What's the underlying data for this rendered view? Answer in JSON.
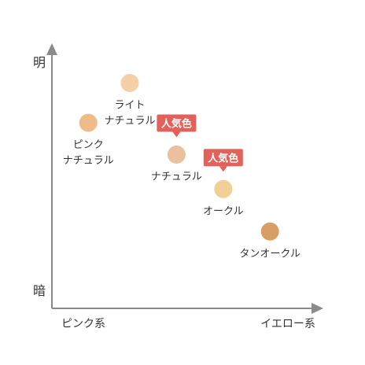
{
  "chart_data": {
    "type": "scatter",
    "title": "",
    "xlabel": "",
    "ylabel": "",
    "x_axis": {
      "low_label": "ピンク系",
      "high_label": "イエロー系",
      "range": [
        0,
        10
      ]
    },
    "y_axis": {
      "low_label": "暗",
      "high_label": "明",
      "range": [
        0,
        10
      ]
    },
    "grid": false,
    "legend": "none",
    "badge_text": "人気色",
    "points": [
      {
        "name": "ライト\nナチュラル",
        "x": 3.0,
        "y": 8.5,
        "color": "#F5CFA7",
        "popular": false
      },
      {
        "name": "ピンク\nナチュラル",
        "x": 1.4,
        "y": 7.0,
        "color": "#EFBC89",
        "popular": false
      },
      {
        "name": "ナチュラル",
        "x": 4.8,
        "y": 5.8,
        "color": "#EBC09E",
        "popular": true
      },
      {
        "name": "オークル",
        "x": 6.6,
        "y": 4.5,
        "color": "#F1CF95",
        "popular": true
      },
      {
        "name": "タンオークル",
        "x": 8.4,
        "y": 2.9,
        "color": "#D99E63",
        "popular": false
      }
    ],
    "colors": {
      "axis": "#8A8A8A",
      "badge": "#E0625A",
      "text": "#333333"
    }
  }
}
